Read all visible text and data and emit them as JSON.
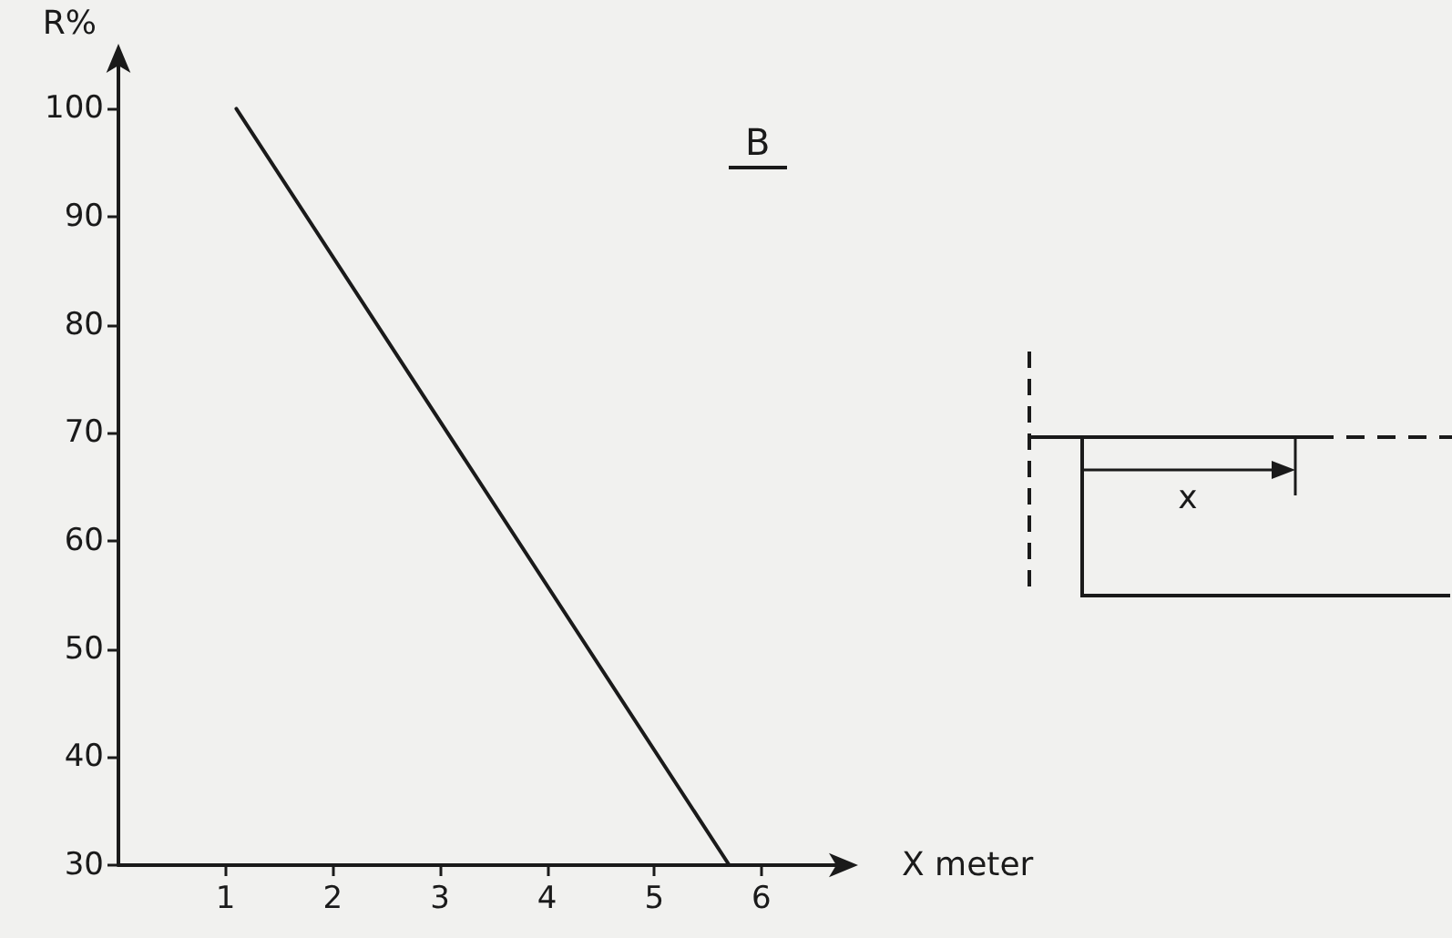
{
  "chart_data": {
    "type": "line",
    "title": "B",
    "xlabel": "X meter",
    "ylabel": "R%",
    "x": [
      1.1,
      5.7
    ],
    "series": [
      {
        "color": "#1a1a1a",
        "values": [
          100,
          30
        ]
      }
    ],
    "xlim": [
      0,
      6.8
    ],
    "xticks": [
      1,
      2,
      3,
      4,
      5,
      6
    ],
    "ylim": [
      30,
      105
    ],
    "yticks": [
      30,
      40,
      50,
      60,
      70,
      80,
      90,
      100
    ],
    "marker": "none",
    "line_style": "solid",
    "annotations": [
      "x"
    ]
  }
}
